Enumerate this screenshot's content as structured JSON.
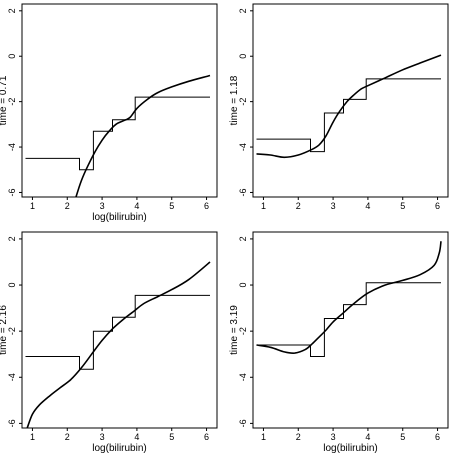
{
  "chart_data": [
    {
      "type": "line",
      "xlabel": "log(bilirubin)",
      "ylabel": "time = 0.71",
      "xlim": [
        0.7,
        6.3
      ],
      "ylim": [
        -6.2,
        2.3
      ],
      "xticks": [
        1,
        2,
        3,
        4,
        5,
        6
      ],
      "yticks": [
        2,
        0,
        -2,
        -4,
        -6
      ],
      "step": {
        "x": [
          0.8,
          2.35,
          2.35,
          2.75,
          2.75,
          3.3,
          3.3,
          3.95,
          3.95,
          6.1
        ],
        "y": [
          -4.5,
          -4.5,
          -5.0,
          -5.0,
          -3.3,
          -3.3,
          -2.8,
          -2.8,
          -1.8,
          -1.8
        ]
      },
      "smooth": {
        "x": [
          2.25,
          2.4,
          2.6,
          2.8,
          3.0,
          3.2,
          3.4,
          3.6,
          3.8,
          4.0,
          4.3,
          4.6,
          5.0,
          5.5,
          6.1
        ],
        "y": [
          -6.2,
          -5.5,
          -4.8,
          -4.2,
          -3.7,
          -3.3,
          -3.0,
          -2.85,
          -2.7,
          -2.3,
          -1.9,
          -1.6,
          -1.35,
          -1.1,
          -0.85
        ]
      }
    },
    {
      "type": "line",
      "xlabel": "",
      "ylabel": "time = 1.18",
      "xlim": [
        0.7,
        6.3
      ],
      "ylim": [
        -6.2,
        2.3
      ],
      "xticks": [
        1,
        2,
        3,
        4,
        5,
        6
      ],
      "yticks": [
        2,
        0,
        -2,
        -4,
        -6
      ],
      "step": {
        "x": [
          0.8,
          2.35,
          2.35,
          2.75,
          2.75,
          3.3,
          3.3,
          3.95,
          3.95,
          6.1
        ],
        "y": [
          -3.65,
          -3.65,
          -4.2,
          -4.2,
          -2.5,
          -2.5,
          -1.9,
          -1.9,
          -1.0,
          -1.0
        ]
      },
      "smooth": {
        "x": [
          0.8,
          1.2,
          1.6,
          2.0,
          2.4,
          2.6,
          2.8,
          3.0,
          3.2,
          3.4,
          3.6,
          3.8,
          4.0,
          4.5,
          5.0,
          5.5,
          6.1
        ],
        "y": [
          -4.3,
          -4.35,
          -4.45,
          -4.35,
          -4.1,
          -3.9,
          -3.5,
          -2.9,
          -2.4,
          -2.0,
          -1.7,
          -1.45,
          -1.3,
          -0.95,
          -0.6,
          -0.3,
          0.05
        ]
      }
    },
    {
      "type": "line",
      "xlabel": "log(bilirubin)",
      "ylabel": "time = 2.16",
      "xlim": [
        0.7,
        6.3
      ],
      "ylim": [
        -6.2,
        2.3
      ],
      "xticks": [
        1,
        2,
        3,
        4,
        5,
        6
      ],
      "yticks": [
        2,
        0,
        -2,
        -4,
        -6
      ],
      "step": {
        "x": [
          0.8,
          2.35,
          2.35,
          2.75,
          2.75,
          3.3,
          3.3,
          3.95,
          3.95,
          6.1
        ],
        "y": [
          -3.1,
          -3.1,
          -3.65,
          -3.65,
          -2.0,
          -2.0,
          -1.4,
          -1.4,
          -0.45,
          -0.45
        ]
      },
      "smooth": {
        "x": [
          0.85,
          1.0,
          1.2,
          1.5,
          1.8,
          2.1,
          2.4,
          2.7,
          3.0,
          3.3,
          3.6,
          3.9,
          4.2,
          4.6,
          5.0,
          5.5,
          6.1
        ],
        "y": [
          -6.2,
          -5.6,
          -5.2,
          -4.8,
          -4.45,
          -4.1,
          -3.6,
          -3.0,
          -2.4,
          -1.9,
          -1.5,
          -1.15,
          -0.8,
          -0.5,
          -0.2,
          0.25,
          1.0
        ]
      }
    },
    {
      "type": "line",
      "xlabel": "log(bilirubin)",
      "ylabel": "time = 3.19",
      "xlim": [
        0.7,
        6.3
      ],
      "ylim": [
        -6.2,
        2.3
      ],
      "xticks": [
        1,
        2,
        3,
        4,
        5,
        6
      ],
      "yticks": [
        2,
        0,
        -2,
        -4,
        -6
      ],
      "step": {
        "x": [
          0.8,
          2.35,
          2.35,
          2.75,
          2.75,
          3.3,
          3.3,
          3.95,
          3.95,
          6.1
        ],
        "y": [
          -2.6,
          -2.6,
          -3.1,
          -3.1,
          -1.45,
          -1.45,
          -0.85,
          -0.85,
          0.1,
          0.1
        ]
      },
      "smooth": {
        "x": [
          0.8,
          1.2,
          1.6,
          1.9,
          2.2,
          2.4,
          2.6,
          2.8,
          3.0,
          3.3,
          3.6,
          4.0,
          4.5,
          5.0,
          5.5,
          5.9,
          6.05,
          6.1
        ],
        "y": [
          -2.6,
          -2.7,
          -2.9,
          -2.95,
          -2.8,
          -2.55,
          -2.25,
          -1.95,
          -1.6,
          -1.2,
          -0.8,
          -0.35,
          0.0,
          0.2,
          0.45,
          0.85,
          1.4,
          1.9
        ]
      }
    }
  ]
}
